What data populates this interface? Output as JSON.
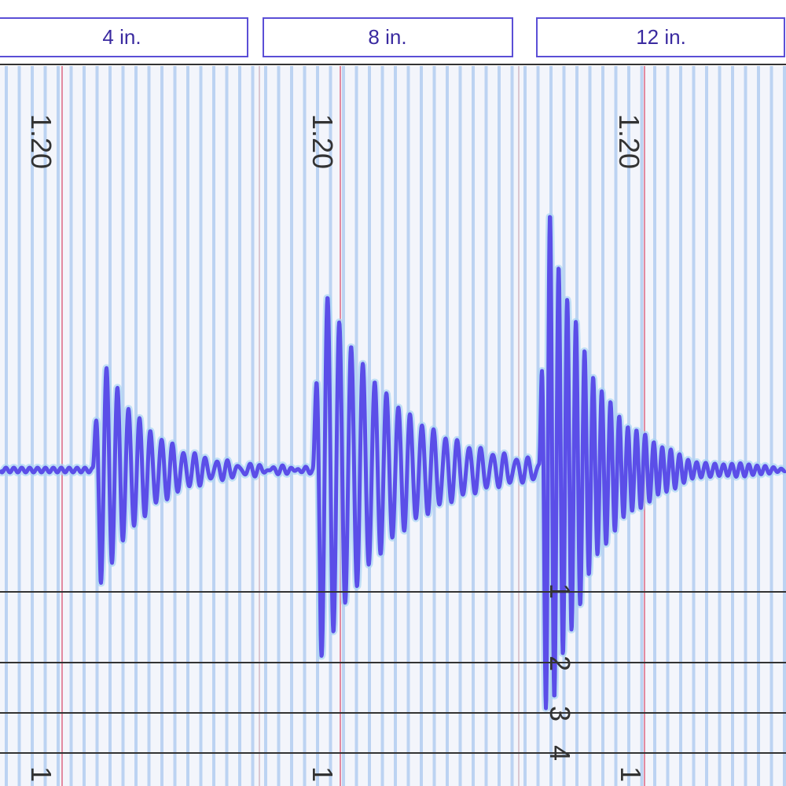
{
  "panels": [
    {
      "header": "4 in.",
      "time_label": "1.20",
      "bottom_label": "1"
    },
    {
      "header": "8 in.",
      "time_label": "1.20",
      "bottom_label": "1"
    },
    {
      "header": "12 in.",
      "time_label": "1.20",
      "bottom_label": "1",
      "trace_labels": [
        "1",
        "2",
        "3",
        "4"
      ]
    }
  ]
}
